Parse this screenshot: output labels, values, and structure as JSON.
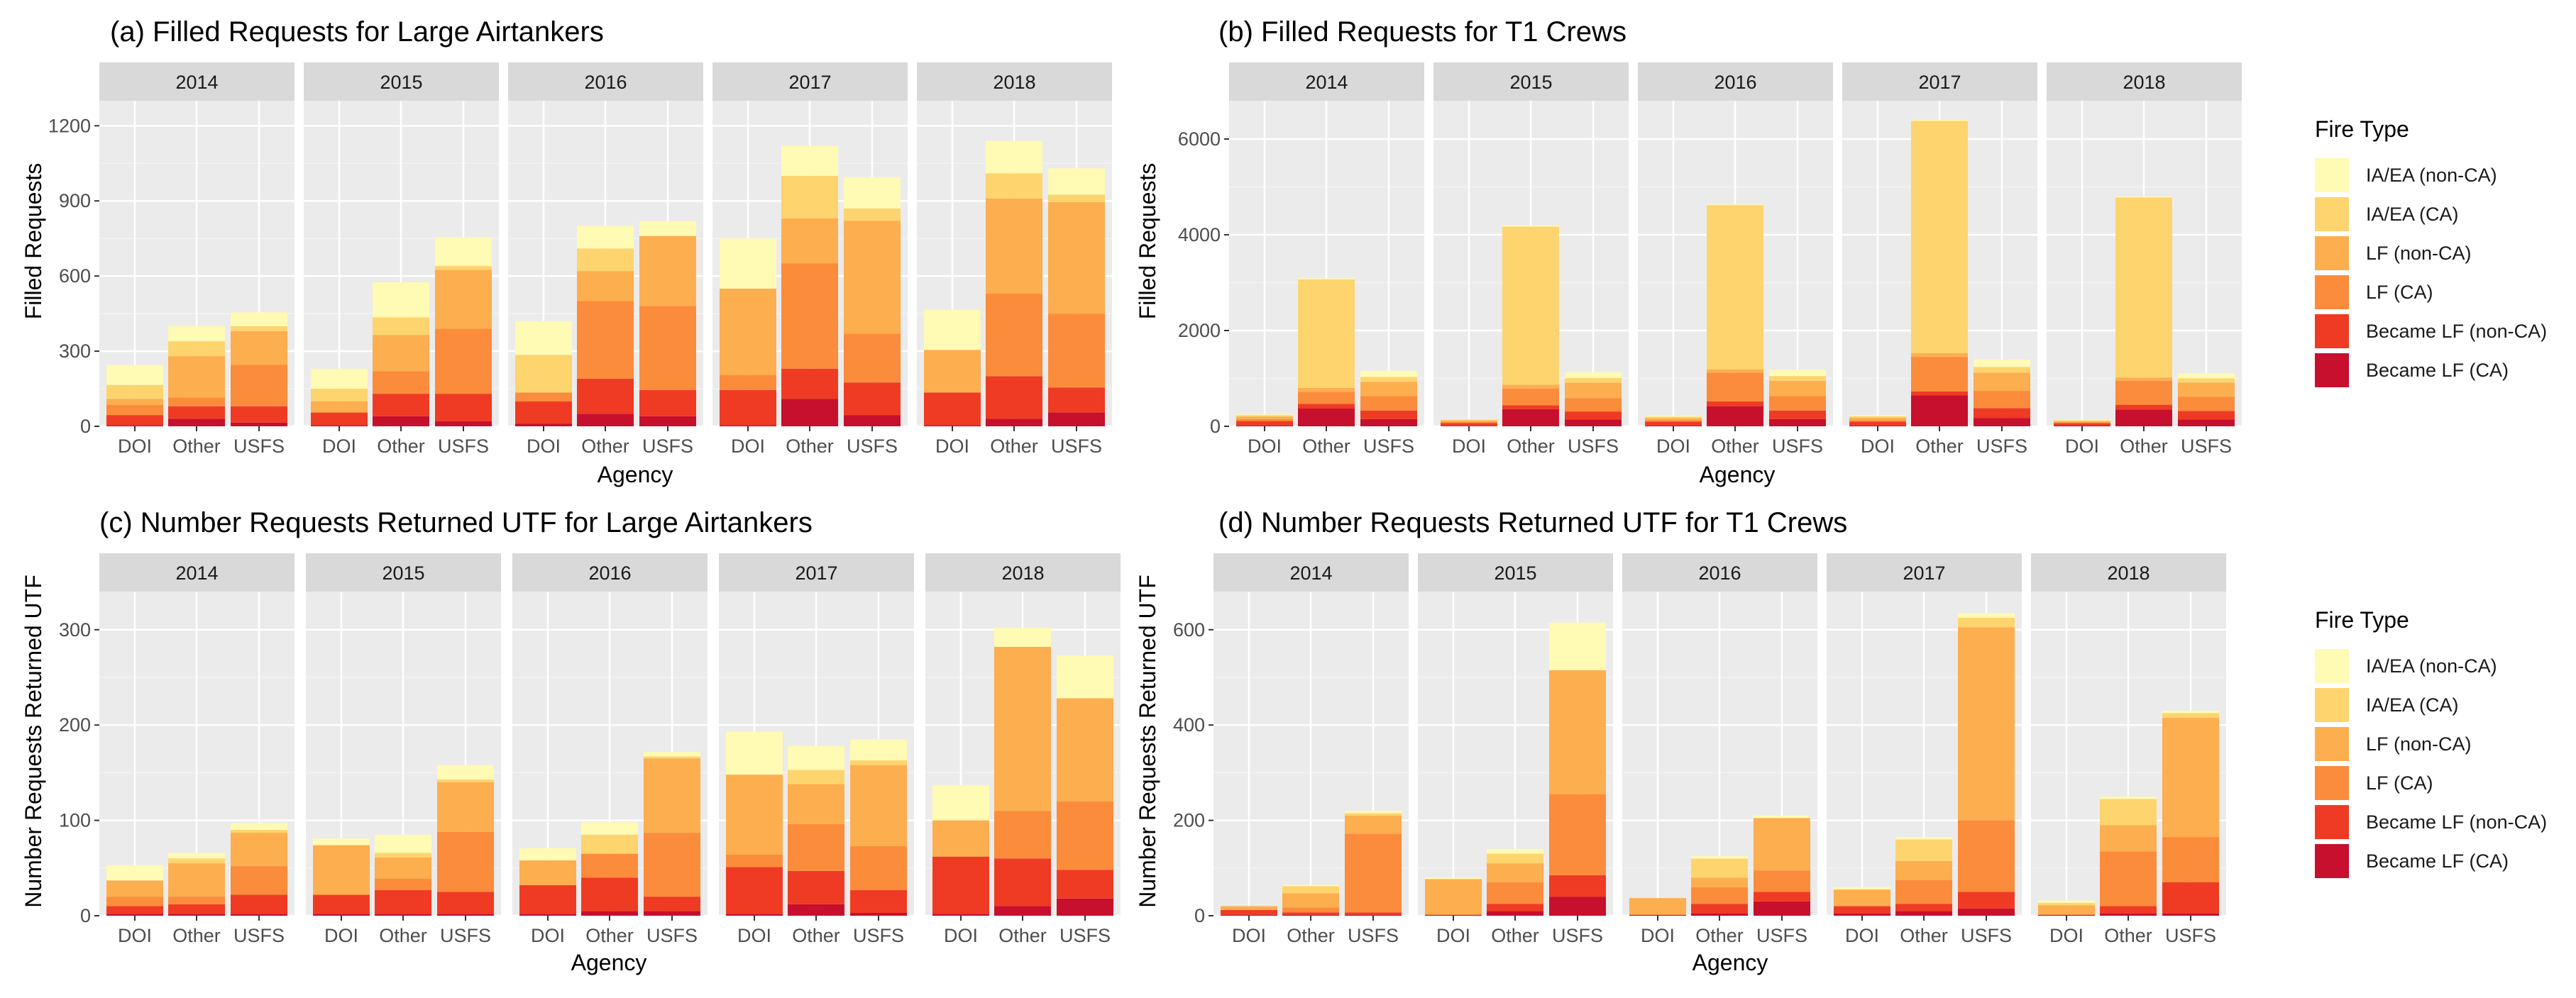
{
  "colors": {
    "panel_bg": "#ebebeb",
    "strip_bg": "#d9d9d9",
    "grid_major": "#ffffff",
    "grid_minor": "#f3f3f3",
    "fire_types": [
      "#C70F2E",
      "#EF3B23",
      "#FB8C3C",
      "#FDAE4F",
      "#FED46E",
      "#FFFAB4"
    ]
  },
  "legend": {
    "title": "Fire Type",
    "labels": [
      "IA/EA (non-CA)",
      "IA/EA (CA)",
      "LF (non-CA)",
      "LF (CA)",
      "Became LF (non-CA)",
      "Became LF (CA)"
    ]
  },
  "chart_data": [
    {
      "type": "bar",
      "stacked": true,
      "title": "(a) Filled Requests for Large Airtankers",
      "xlabel": "Agency",
      "ylabel": "Filled Requests",
      "ylim": [
        0,
        1300
      ],
      "yticks": [
        0,
        300,
        600,
        900,
        1200
      ],
      "facets": [
        "2014",
        "2015",
        "2016",
        "2017",
        "2018"
      ],
      "categories": [
        "DOI",
        "Other",
        "USFS"
      ],
      "stack_order": [
        "Became LF (CA)",
        "Became LF (non-CA)",
        "LF (CA)",
        "LF (non-CA)",
        "IA/EA (CA)",
        "IA/EA (non-CA)"
      ],
      "values": {
        "2014": {
          "DOI": [
            5,
            40,
            40,
            25,
            55,
            80
          ],
          "Other": [
            30,
            50,
            35,
            165,
            60,
            60
          ],
          "USFS": [
            15,
            65,
            165,
            135,
            20,
            55
          ]
        },
        "2015": {
          "DOI": [
            5,
            50,
            0,
            45,
            50,
            80
          ],
          "Other": [
            40,
            90,
            90,
            145,
            70,
            140
          ],
          "USFS": [
            20,
            110,
            260,
            235,
            15,
            115
          ]
        },
        "2016": {
          "DOI": [
            10,
            90,
            35,
            0,
            150,
            135
          ],
          "Other": [
            50,
            140,
            310,
            120,
            90,
            90
          ],
          "USFS": [
            40,
            105,
            335,
            280,
            0,
            60
          ]
        },
        "2017": {
          "DOI": [
            5,
            140,
            60,
            345,
            0,
            200
          ],
          "Other": [
            110,
            120,
            420,
            180,
            170,
            120
          ],
          "USFS": [
            45,
            130,
            195,
            450,
            50,
            125
          ]
        },
        "2018": {
          "DOI": [
            5,
            130,
            0,
            170,
            0,
            160
          ],
          "Other": [
            30,
            170,
            330,
            380,
            100,
            130
          ],
          "USFS": [
            55,
            100,
            295,
            445,
            30,
            105
          ]
        }
      }
    },
    {
      "type": "bar",
      "stacked": true,
      "title": "(b) Filled Requests for T1 Crews",
      "xlabel": "Agency",
      "ylabel": "Filled Requests",
      "ylim": [
        0,
        6800
      ],
      "yticks": [
        0,
        2000,
        4000,
        6000
      ],
      "facets": [
        "2014",
        "2015",
        "2016",
        "2017",
        "2018"
      ],
      "categories": [
        "DOI",
        "Other",
        "USFS"
      ],
      "stack_order": [
        "Became LF (CA)",
        "Became LF (non-CA)",
        "LF (CA)",
        "LF (non-CA)",
        "IA/EA (CA)",
        "IA/EA (non-CA)"
      ],
      "values": {
        "2014": {
          "DOI": [
            20,
            90,
            40,
            50,
            30,
            20
          ],
          "Other": [
            370,
            100,
            250,
            80,
            2270,
            20
          ],
          "USFS": [
            150,
            180,
            300,
            300,
            100,
            130
          ]
        },
        "2015": {
          "DOI": [
            10,
            60,
            20,
            30,
            20,
            10
          ],
          "Other": [
            360,
            80,
            350,
            80,
            3300,
            30
          ],
          "USFS": [
            140,
            170,
            280,
            320,
            100,
            120
          ]
        },
        "2016": {
          "DOI": [
            20,
            80,
            30,
            40,
            30,
            20
          ],
          "Other": [
            420,
            100,
            600,
            70,
            3430,
            20
          ],
          "USFS": [
            150,
            180,
            300,
            320,
            100,
            130
          ]
        },
        "2017": {
          "DOI": [
            20,
            80,
            30,
            50,
            30,
            20
          ],
          "Other": [
            650,
            80,
            720,
            80,
            4850,
            20
          ],
          "USFS": [
            170,
            210,
            360,
            380,
            120,
            150
          ]
        },
        "2018": {
          "DOI": [
            15,
            50,
            20,
            20,
            20,
            10
          ],
          "Other": [
            350,
            100,
            500,
            70,
            3760,
            20
          ],
          "USFS": [
            140,
            180,
            300,
            290,
            90,
            110
          ]
        }
      }
    },
    {
      "type": "bar",
      "stacked": true,
      "title": "(c) Number Requests Returned UTF for Large Airtankers",
      "xlabel": "Agency",
      "ylabel": "Number Requests Returned UTF",
      "ylim": [
        0,
        340
      ],
      "yticks": [
        0,
        100,
        200,
        300
      ],
      "facets": [
        "2014",
        "2015",
        "2016",
        "2017",
        "2018"
      ],
      "categories": [
        "DOI",
        "Other",
        "USFS"
      ],
      "stack_order": [
        "Became LF (CA)",
        "Became LF (non-CA)",
        "LF (CA)",
        "LF (non-CA)",
        "IA/EA (CA)",
        "IA/EA (non-CA)"
      ],
      "values": {
        "2014": {
          "DOI": [
            2,
            8,
            10,
            17,
            0,
            16
          ],
          "Other": [
            2,
            10,
            8,
            35,
            5,
            6
          ],
          "USFS": [
            2,
            20,
            30,
            35,
            3,
            7
          ]
        },
        "2015": {
          "DOI": [
            2,
            20,
            0,
            52,
            0,
            7
          ],
          "Other": [
            2,
            25,
            12,
            22,
            5,
            19
          ],
          "USFS": [
            2,
            23,
            63,
            52,
            3,
            15
          ]
        },
        "2016": {
          "DOI": [
            2,
            30,
            0,
            26,
            0,
            13
          ],
          "Other": [
            5,
            35,
            25,
            0,
            20,
            13
          ],
          "USFS": [
            5,
            15,
            67,
            78,
            2,
            5
          ]
        },
        "2017": {
          "DOI": [
            2,
            49,
            13,
            84,
            0,
            45
          ],
          "Other": [
            12,
            35,
            49,
            42,
            15,
            25
          ],
          "USFS": [
            3,
            24,
            46,
            85,
            5,
            22
          ]
        },
        "2018": {
          "DOI": [
            2,
            60,
            0,
            38,
            0,
            37
          ],
          "Other": [
            10,
            50,
            50,
            172,
            0,
            20
          ],
          "USFS": [
            18,
            30,
            72,
            108,
            0,
            45
          ]
        }
      }
    },
    {
      "type": "bar",
      "stacked": true,
      "title": "(d) Number Requests Returned UTF for T1 Crews",
      "xlabel": "Agency",
      "ylabel": "Number Requests Returned UTF",
      "ylim": [
        0,
        680
      ],
      "yticks": [
        0,
        200,
        400,
        600
      ],
      "facets": [
        "2014",
        "2015",
        "2016",
        "2017",
        "2018"
      ],
      "categories": [
        "DOI",
        "Other",
        "USFS"
      ],
      "stack_order": [
        "Became LF (CA)",
        "Became LF (non-CA)",
        "LF (CA)",
        "LF (non-CA)",
        "IA/EA (CA)",
        "IA/EA (non-CA)"
      ],
      "values": {
        "2014": {
          "DOI": [
            2,
            10,
            0,
            8,
            0,
            0
          ],
          "Other": [
            2,
            5,
            10,
            30,
            15,
            3
          ],
          "USFS": [
            2,
            5,
            165,
            38,
            5,
            5
          ]
        },
        "2015": {
          "DOI": [
            2,
            0,
            0,
            75,
            0,
            3
          ],
          "Other": [
            10,
            15,
            45,
            40,
            20,
            10
          ],
          "USFS": [
            40,
            45,
            170,
            260,
            0,
            100
          ]
        },
        "2016": {
          "DOI": [
            2,
            0,
            0,
            35,
            0,
            0
          ],
          "Other": [
            5,
            20,
            35,
            20,
            40,
            5
          ],
          "USFS": [
            30,
            20,
            45,
            110,
            0,
            5
          ]
        },
        "2017": {
          "DOI": [
            5,
            15,
            0,
            35,
            0,
            5
          ],
          "Other": [
            10,
            15,
            50,
            40,
            45,
            5
          ],
          "USFS": [
            15,
            35,
            150,
            405,
            20,
            10
          ]
        },
        "2018": {
          "DOI": [
            2,
            0,
            0,
            20,
            5,
            5
          ],
          "Other": [
            5,
            15,
            115,
            55,
            55,
            5
          ],
          "USFS": [
            5,
            65,
            95,
            250,
            10,
            5
          ]
        }
      }
    }
  ]
}
